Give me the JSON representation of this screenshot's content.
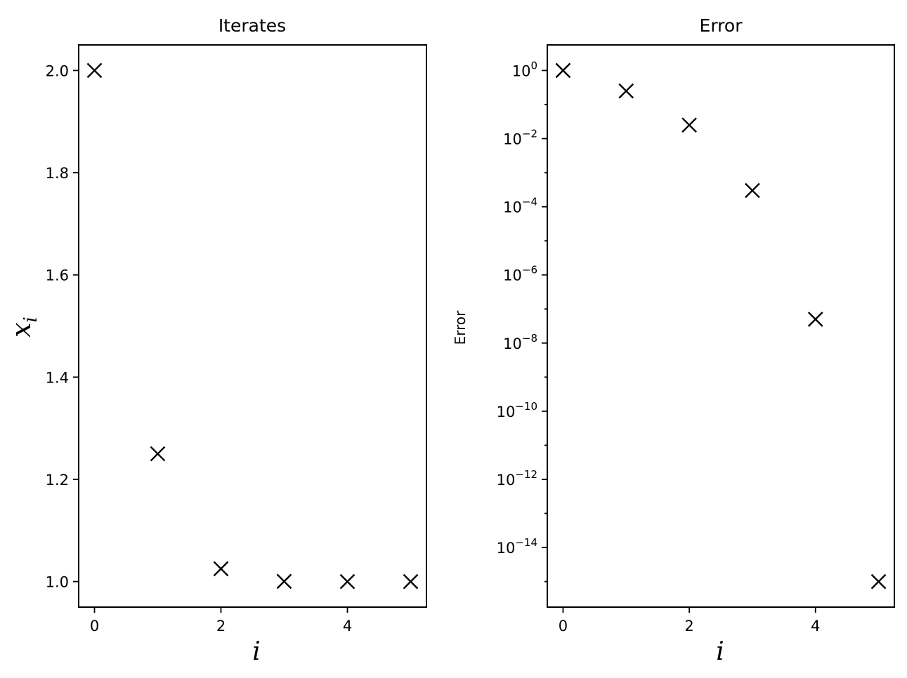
{
  "chart_data": [
    {
      "type": "scatter",
      "title": "Iterates",
      "xlabel": "i",
      "ylabel": "x",
      "ylabel_subscript": "i",
      "marker": "x",
      "color": "#000000",
      "xlim": [
        -0.25,
        5.25
      ],
      "ylim": [
        0.95,
        2.05
      ],
      "x": [
        0,
        1,
        2,
        3,
        4,
        5
      ],
      "y": [
        2.0,
        1.25,
        1.025,
        1.0003,
        1.00000005,
        1.0
      ],
      "xticks": [
        0,
        2,
        4
      ],
      "xtick_labels": [
        "0",
        "2",
        "4"
      ],
      "yticks": [
        1.0,
        1.2,
        1.4,
        1.6,
        1.8,
        2.0
      ],
      "ytick_labels": [
        "1.0",
        "1.2",
        "1.4",
        "1.6",
        "1.8",
        "2.0"
      ],
      "yscale": "linear",
      "grid": false
    },
    {
      "type": "scatter",
      "title": "Error",
      "xlabel": "i",
      "ylabel": "Error",
      "marker": "x",
      "color": "#000000",
      "xlim": [
        -0.25,
        5.25
      ],
      "ylim_log10": [
        -15.75,
        0.75
      ],
      "x": [
        0,
        1,
        2,
        3,
        4,
        5
      ],
      "y": [
        1.0,
        0.25,
        0.025,
        0.0003,
        5e-08,
        1e-15
      ],
      "xticks": [
        0,
        2,
        4
      ],
      "xtick_labels": [
        "0",
        "2",
        "4"
      ],
      "ytick_exponents": [
        0,
        -2,
        -4,
        -6,
        -8,
        -10,
        -12,
        -14
      ],
      "ytick_base": "10",
      "yscale": "log",
      "grid": false
    }
  ]
}
